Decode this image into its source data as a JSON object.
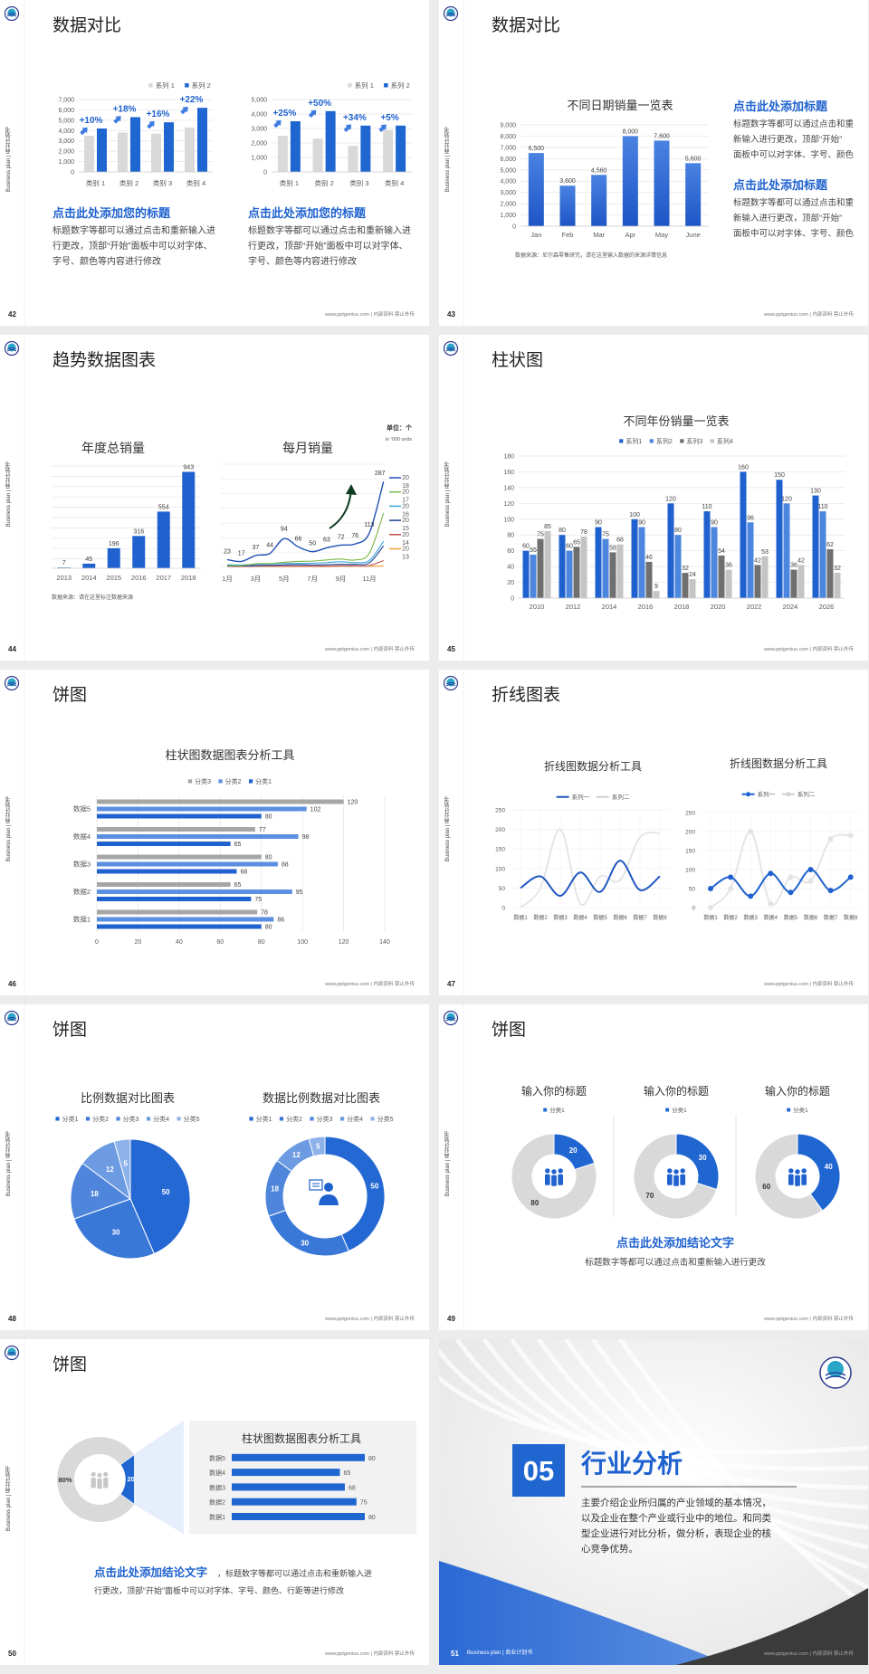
{
  "colors": {
    "accent": "#1f66d1",
    "accent_dark": "#1b4fb0",
    "gray_bar": "#d9d9d9",
    "dark_gray": "#3b3b3b",
    "arrow_green": "#0f3d22"
  },
  "common": {
    "side_text": "Business plan | 商业计划书",
    "footer": "www.pptgenius.com | 内部资料 禁止外传",
    "logo_icon": "school-emblem-icon"
  },
  "slides": [
    {
      "page": "42",
      "title": "数据对比",
      "heading_left": "点击此处添加您的标题",
      "body_left": [
        "标题数字等都可以通过点击和重新输入进",
        "行更改，顶部“开始”面板中可以对字体、",
        "字号、颜色等内容进行修改"
      ],
      "heading_right": "点击此处添加您的标题",
      "body_right": [
        "标题数字等都可以通过点击和重新输入进",
        "行更改，顶部“开始”面板中可以对字体、",
        "字号、颜色等内容进行修改"
      ]
    },
    {
      "page": "43",
      "title": "数据对比",
      "heading1": "点击此处添加标题",
      "body1": [
        "标题数字等都可以通过点击和重",
        "新输入进行更改，顶部“开始”",
        "面板中可以对字体、字号、颜色"
      ],
      "heading2": "点击此处添加标题",
      "body2": [
        "标题数字等都可以通过点击和重",
        "新输入进行更改，顶部“开始”",
        "面板中可以对字体、字号、颜色"
      ]
    },
    {
      "page": "44",
      "title": "趋势数据图表"
    },
    {
      "page": "45",
      "title": "柱状图"
    },
    {
      "page": "46",
      "title": "饼图"
    },
    {
      "page": "47",
      "title": "折线图表"
    },
    {
      "page": "48",
      "title": "饼图"
    },
    {
      "page": "49",
      "title": "饼图",
      "conclusion_title": "点击此处添加结论文字",
      "conclusion_body": "标题数字等都可以通过点击和重新输入进行更改"
    },
    {
      "page": "50",
      "title": "饼图",
      "conclusion_title": "点击此处添加结论文字",
      "conclusion_rest": "，标题数字等都可以通过点击和重新输入进",
      "conclusion_line2": "行更改，顶部“开始”面板中可以对字体、字号、颜色、行距等进行修改"
    },
    {
      "page": "51",
      "section_number": "05",
      "section_title": "行业分析",
      "section_body": [
        "主要介绍企业所归属的产业领域的基本情况，",
        "以及企业在整个产业或行业中的地位。和同类",
        "型企业进行对比分析，做分析，表现企业的核",
        "心竞争优势。"
      ],
      "footer_left": "Business plan | 商业计划书"
    }
  ],
  "chart_data": [
    {
      "id": "s42a",
      "type": "bar",
      "categories": [
        "类别 1",
        "类别 2",
        "类别 3",
        "类别 4"
      ],
      "ylim": [
        0,
        7000
      ],
      "yticks": [
        0,
        1000,
        2000,
        3000,
        4000,
        5000,
        6000,
        7000
      ],
      "series": [
        {
          "name": "系列 1",
          "values": [
            3500,
            3800,
            3700,
            4300
          ],
          "color": "#d9d9d9"
        },
        {
          "name": "系列 2",
          "values": [
            4200,
            5300,
            4800,
            6200
          ],
          "color": "#1f66d1"
        }
      ],
      "annotations": [
        "+10%",
        "+18%",
        "+16%",
        "+22%"
      ],
      "legend": "top-right"
    },
    {
      "id": "s42b",
      "type": "bar",
      "categories": [
        "类别 1",
        "类别 2",
        "类别 3",
        "类别 4"
      ],
      "ylim": [
        0,
        5000
      ],
      "yticks": [
        0,
        1000,
        2000,
        3000,
        4000,
        5000
      ],
      "series": [
        {
          "name": "系列 1",
          "values": [
            2500,
            2300,
            1800,
            2900
          ],
          "color": "#d9d9d9"
        },
        {
          "name": "系列 2",
          "values": [
            3500,
            4200,
            3200,
            3200
          ],
          "color": "#1f66d1"
        }
      ],
      "annotations": [
        "+25%",
        "+50%",
        "+34%",
        "+5%"
      ],
      "legend": "top-right"
    },
    {
      "id": "s43",
      "type": "bar",
      "title": "不同日期销量一览表",
      "categories": [
        "Jan",
        "Feb",
        "Mar",
        "Apr",
        "May",
        "June"
      ],
      "values": [
        6500,
        3600,
        4560,
        8000,
        7600,
        5600
      ],
      "labels": [
        "6,500",
        "3,600",
        "4,560",
        "8,000",
        "7,600",
        "5,600"
      ],
      "ylim": [
        0,
        9000
      ],
      "yticks": [
        0,
        1000,
        2000,
        3000,
        4000,
        5000,
        6000,
        7000,
        8000,
        9000
      ],
      "source": "数据来源：尼尔森零售研究，请在这里输入数据的来源详情信息"
    },
    {
      "id": "s44a",
      "type": "bar",
      "title": "年度总销量",
      "categories": [
        "2013",
        "2014",
        "2015",
        "2016",
        "2017",
        "2018"
      ],
      "values": [
        7,
        45,
        196,
        316,
        554,
        943
      ],
      "ylim": [
        0,
        1000
      ],
      "grid": true,
      "source": "数据来源：请在这里标注数据来源"
    },
    {
      "id": "s44b",
      "type": "line",
      "title": "每月销量",
      "unit": "单位：个",
      "unit_sub": "in '000 units",
      "x": [
        "1月",
        "2月",
        "3月",
        "4月",
        "5月",
        "6月",
        "7月",
        "8月",
        "9月",
        "10月",
        "11月",
        "12月"
      ],
      "x_tick_labels": [
        "1月",
        "3月",
        "5月",
        "7月",
        "9月",
        "11月"
      ],
      "series": [
        {
          "name": "2018",
          "color": "#1f4fb5",
          "values": [
            23,
            17,
            37,
            44,
            94,
            66,
            50,
            63,
            72,
            76,
            113,
            287
          ],
          "labels": [
            "23",
            "17",
            "37",
            "44",
            "94",
            "66",
            "50",
            "63",
            "72",
            "76",
            "113",
            "287"
          ]
        },
        {
          "name": "2017",
          "color": "#7ab648",
          "values": [
            3,
            3,
            9,
            10,
            14,
            17,
            18,
            22,
            25,
            22,
            45,
            180
          ]
        },
        {
          "name": "2016",
          "color": "#3aa6dc",
          "values": [
            6,
            5,
            7,
            9,
            10,
            10,
            11,
            13,
            16,
            13,
            20,
            85
          ]
        },
        {
          "name": "2015",
          "color": "#1b3f8f",
          "values": [
            2,
            2,
            3,
            4,
            5,
            6,
            5,
            6,
            7,
            7,
            12,
            70
          ]
        },
        {
          "name": "2014",
          "color": "#c0504d",
          "values": [
            0,
            0,
            1,
            1,
            1,
            1,
            1,
            1,
            2,
            2,
            3,
            20
          ]
        },
        {
          "name": "2013",
          "color": "#f0a030",
          "values": [
            0,
            0,
            0,
            0,
            0,
            0,
            0,
            0,
            1,
            1,
            1,
            2
          ]
        }
      ],
      "legend": "right",
      "annotation": "trend-arrow-up"
    },
    {
      "id": "s45",
      "type": "bar",
      "title": "不同年份销量一览表",
      "categories": [
        "2010",
        "2012",
        "2014",
        "2016",
        "2018",
        "2020",
        "2022",
        "2024",
        "2026"
      ],
      "ylim": [
        0,
        180
      ],
      "yticks": [
        0,
        20,
        40,
        60,
        80,
        100,
        120,
        140,
        160,
        180
      ],
      "legend": "top",
      "series": [
        {
          "name": "系列1",
          "color": "#1f62cf",
          "values": [
            60,
            80,
            90,
            100,
            120,
            110,
            160,
            150,
            130
          ]
        },
        {
          "name": "系列2",
          "color": "#4c86de",
          "values": [
            55,
            60,
            75,
            90,
            80,
            90,
            96,
            120,
            110
          ]
        },
        {
          "name": "系列3",
          "color": "#6f6f6f",
          "values": [
            75,
            65,
            58,
            46,
            32,
            54,
            42,
            36,
            62
          ]
        },
        {
          "name": "系列4",
          "color": "#c4c4c4",
          "values": [
            85,
            78,
            68,
            9,
            24,
            36,
            53,
            42,
            32
          ]
        }
      ]
    },
    {
      "id": "s46",
      "type": "bar",
      "orientation": "horizontal",
      "title": "柱状图数据图表分析工具",
      "categories": [
        "数据1",
        "数据2",
        "数据3",
        "数据4",
        "数据5"
      ],
      "xlim": [
        0,
        140
      ],
      "xticks": [
        0,
        20,
        40,
        60,
        80,
        100,
        120,
        140
      ],
      "legend": "top",
      "series": [
        {
          "name": "分类3",
          "color": "#a6a6a6",
          "values": [
            78,
            65,
            80,
            77,
            120
          ]
        },
        {
          "name": "分类2",
          "color": "#5b8fe0",
          "values": [
            86,
            95,
            88,
            98,
            102
          ]
        },
        {
          "name": "分类1",
          "color": "#1f62cf",
          "values": [
            80,
            75,
            68,
            65,
            80
          ]
        }
      ]
    },
    {
      "id": "s47a",
      "type": "line",
      "title": "折线图数据分析工具",
      "smooth": true,
      "markers": false,
      "x": [
        "数据1",
        "数据2",
        "数据3",
        "数据4",
        "数据5",
        "数据6",
        "数据7",
        "数据8"
      ],
      "ylim": [
        0,
        250
      ],
      "yticks": [
        0,
        50,
        100,
        150,
        200,
        250
      ],
      "legend": "top",
      "series": [
        {
          "name": "系列一",
          "color": "#1f56c0",
          "values": [
            50,
            80,
            30,
            90,
            40,
            120,
            45,
            80
          ]
        },
        {
          "name": "系列二",
          "color": "#e3e3e3",
          "values": [
            0,
            50,
            200,
            10,
            80,
            70,
            180,
            190
          ]
        }
      ]
    },
    {
      "id": "s47b",
      "type": "line",
      "title": "折线图数据分析工具",
      "smooth": true,
      "markers": true,
      "x": [
        "数据1",
        "数据2",
        "数据3",
        "数据4",
        "数据5",
        "数据6",
        "数据7",
        "数据8"
      ],
      "ylim": [
        0,
        250
      ],
      "yticks": [
        0,
        50,
        100,
        150,
        200,
        250
      ],
      "legend": "top",
      "series": [
        {
          "name": "系列一",
          "color": "#1f62cf",
          "values": [
            50,
            80,
            30,
            90,
            40,
            100,
            45,
            80
          ]
        },
        {
          "name": "系列二",
          "color": "#e3e3e3",
          "values": [
            0,
            50,
            200,
            10,
            80,
            70,
            180,
            190
          ]
        }
      ]
    },
    {
      "id": "s48a",
      "type": "pie",
      "title": "比例数据对比图表",
      "legend": "top",
      "categories": [
        "分类1",
        "分类2",
        "分类3",
        "分类4",
        "分类5"
      ],
      "values": [
        50,
        30,
        18,
        12,
        5
      ],
      "colors": [
        "#2468d4",
        "#3a78d8",
        "#4f86dc",
        "#6c9be2",
        "#8db2ea"
      ]
    },
    {
      "id": "s48b",
      "type": "pie",
      "donut": true,
      "title": "数据比例数据对比图表",
      "legend": "top",
      "center_icon": "presenter-icon",
      "categories": [
        "分类1",
        "分类2",
        "分类3",
        "分类4",
        "分类5"
      ],
      "values": [
        50,
        30,
        18,
        12,
        5
      ],
      "colors": [
        "#2468d4",
        "#3a78d8",
        "#4f86dc",
        "#6c9be2",
        "#8db2ea"
      ]
    },
    {
      "id": "s49",
      "type": "pie",
      "donut": true,
      "center_icon": "team-icon",
      "charts": [
        {
          "title": "输入你的标题",
          "legend": "分类1",
          "values": [
            20,
            80
          ]
        },
        {
          "title": "输入你的标题",
          "legend": "分类1",
          "values": [
            30,
            70
          ]
        },
        {
          "title": "输入你的标题",
          "legend": "分类1",
          "values": [
            40,
            60
          ]
        }
      ],
      "colors": [
        "#1f66d1",
        "#d9d9d9"
      ]
    },
    {
      "id": "s50a",
      "type": "pie",
      "donut": true,
      "values": [
        20,
        80
      ],
      "labels": [
        "20%",
        "80%"
      ],
      "colors": [
        "#1f66d1",
        "#d9d9d9"
      ],
      "center_icon": "teamwork-icon"
    },
    {
      "id": "s50b",
      "type": "bar",
      "orientation": "horizontal",
      "title": "柱状图数据图表分析工具",
      "categories": [
        "数据1",
        "数据2",
        "数据3",
        "数据4",
        "数据5"
      ],
      "values": [
        80,
        75,
        68,
        65,
        80
      ],
      "xlim": [
        0,
        80
      ],
      "color": "#1f66d1"
    }
  ]
}
